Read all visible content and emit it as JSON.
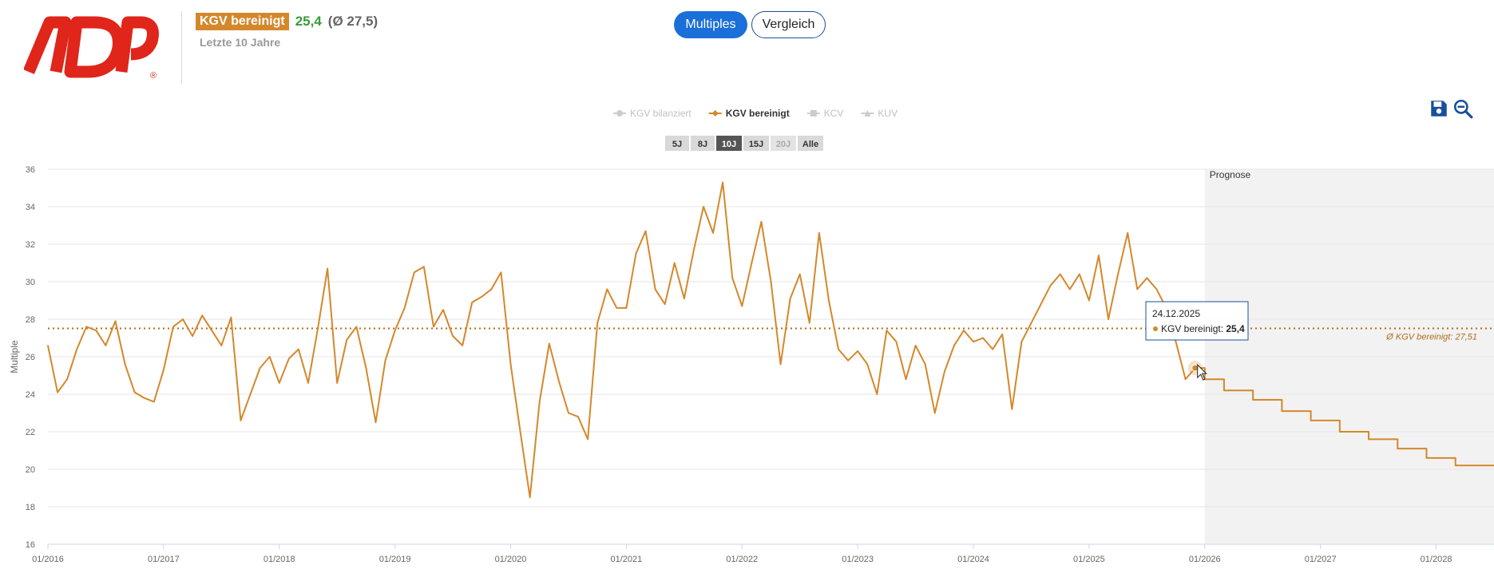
{
  "header": {
    "logo_text": "ADP",
    "kpi_label": "KGV bereinigt",
    "kpi_value": "25,4",
    "kpi_avg": "(Ø 27,5)",
    "period_label": "Letzte 10 Jahre"
  },
  "view_toggle": {
    "active": "Multiples",
    "inactive": "Vergleich"
  },
  "tools": {
    "save_icon": "save-icon",
    "zoom_out_icon": "zoom-out-icon"
  },
  "colors": {
    "series": "#d4882b",
    "accent": "#1a6fd9",
    "positive": "#3a9a3a",
    "forecast_bg": "#f2f2f2"
  },
  "legend": [
    {
      "label": "KGV bilanziert",
      "active": false,
      "marker": "circle"
    },
    {
      "label": "KGV bereinigt",
      "active": true,
      "marker": "diamond"
    },
    {
      "label": "KCV",
      "active": false,
      "marker": "square"
    },
    {
      "label": "KUV",
      "active": false,
      "marker": "triangle"
    }
  ],
  "ranges": [
    {
      "label": "5J",
      "state": "normal"
    },
    {
      "label": "8J",
      "state": "normal"
    },
    {
      "label": "10J",
      "state": "selected"
    },
    {
      "label": "15J",
      "state": "normal"
    },
    {
      "label": "20J",
      "state": "disabled"
    },
    {
      "label": "Alle",
      "state": "normal"
    }
  ],
  "tooltip": {
    "date": "24.12.2025",
    "series": "KGV bereinigt:",
    "value": "25,4"
  },
  "chart_data": {
    "type": "line",
    "title": "",
    "xlabel": "",
    "ylabel": "Multiple",
    "ylim": [
      16,
      36
    ],
    "yticks": [
      16,
      18,
      20,
      22,
      24,
      26,
      28,
      30,
      32,
      34,
      36
    ],
    "xlim": [
      "2016-01",
      "2028-07"
    ],
    "xticks": [
      "01/2016",
      "01/2017",
      "01/2018",
      "01/2019",
      "01/2020",
      "01/2021",
      "01/2022",
      "01/2023",
      "01/2024",
      "01/2025",
      "01/2026",
      "01/2027",
      "01/2028"
    ],
    "grid": "horizontal",
    "legend_position": "top-center",
    "average": {
      "value": 27.51,
      "label": "Ø KGV bereinigt: 27,51"
    },
    "forecast_label": "Prognose",
    "forecast_start": "2026-01",
    "series": [
      {
        "name": "KGV bereinigt",
        "color": "#d4882b",
        "points": [
          [
            "2016-01",
            26.6
          ],
          [
            "2016-02",
            24.1
          ],
          [
            "2016-03",
            24.8
          ],
          [
            "2016-04",
            26.4
          ],
          [
            "2016-05",
            27.6
          ],
          [
            "2016-06",
            27.4
          ],
          [
            "2016-07",
            26.6
          ],
          [
            "2016-08",
            27.9
          ],
          [
            "2016-09",
            25.6
          ],
          [
            "2016-10",
            24.1
          ],
          [
            "2016-11",
            23.8
          ],
          [
            "2016-12",
            23.6
          ],
          [
            "2017-01",
            25.3
          ],
          [
            "2017-02",
            27.6
          ],
          [
            "2017-03",
            28.0
          ],
          [
            "2017-04",
            27.1
          ],
          [
            "2017-05",
            28.2
          ],
          [
            "2017-06",
            27.4
          ],
          [
            "2017-07",
            26.6
          ],
          [
            "2017-08",
            28.1
          ],
          [
            "2017-09",
            22.6
          ],
          [
            "2017-10",
            24.0
          ],
          [
            "2017-11",
            25.4
          ],
          [
            "2017-12",
            26.0
          ],
          [
            "2018-01",
            24.6
          ],
          [
            "2018-02",
            25.9
          ],
          [
            "2018-03",
            26.4
          ],
          [
            "2018-04",
            24.6
          ],
          [
            "2018-05",
            27.5
          ],
          [
            "2018-06",
            30.7
          ],
          [
            "2018-07",
            24.6
          ],
          [
            "2018-08",
            26.9
          ],
          [
            "2018-09",
            27.6
          ],
          [
            "2018-10",
            25.4
          ],
          [
            "2018-11",
            22.5
          ],
          [
            "2018-12",
            25.8
          ],
          [
            "2019-01",
            27.4
          ],
          [
            "2019-02",
            28.6
          ],
          [
            "2019-03",
            30.5
          ],
          [
            "2019-04",
            30.8
          ],
          [
            "2019-05",
            27.6
          ],
          [
            "2019-06",
            28.5
          ],
          [
            "2019-07",
            27.1
          ],
          [
            "2019-08",
            26.6
          ],
          [
            "2019-09",
            28.9
          ],
          [
            "2019-10",
            29.2
          ],
          [
            "2019-11",
            29.6
          ],
          [
            "2019-12",
            30.5
          ],
          [
            "2020-01",
            25.6
          ],
          [
            "2020-02",
            22.0
          ],
          [
            "2020-03",
            18.5
          ],
          [
            "2020-04",
            23.6
          ],
          [
            "2020-05",
            26.7
          ],
          [
            "2020-06",
            24.7
          ],
          [
            "2020-07",
            23.0
          ],
          [
            "2020-08",
            22.8
          ],
          [
            "2020-09",
            21.6
          ],
          [
            "2020-10",
            27.8
          ],
          [
            "2020-11",
            29.6
          ],
          [
            "2020-12",
            28.6
          ],
          [
            "2021-01",
            28.6
          ],
          [
            "2021-02",
            31.5
          ],
          [
            "2021-03",
            32.7
          ],
          [
            "2021-04",
            29.6
          ],
          [
            "2021-05",
            28.8
          ],
          [
            "2021-06",
            31.0
          ],
          [
            "2021-07",
            29.1
          ],
          [
            "2021-08",
            31.7
          ],
          [
            "2021-09",
            34.0
          ],
          [
            "2021-10",
            32.6
          ],
          [
            "2021-11",
            35.3
          ],
          [
            "2021-12",
            30.2
          ],
          [
            "2022-01",
            28.7
          ],
          [
            "2022-02",
            31.0
          ],
          [
            "2022-03",
            33.2
          ],
          [
            "2022-04",
            30.0
          ],
          [
            "2022-05",
            25.6
          ],
          [
            "2022-06",
            29.1
          ],
          [
            "2022-07",
            30.4
          ],
          [
            "2022-08",
            27.8
          ],
          [
            "2022-09",
            32.6
          ],
          [
            "2022-10",
            29.0
          ],
          [
            "2022-11",
            26.4
          ],
          [
            "2022-12",
            25.8
          ],
          [
            "2023-01",
            26.3
          ],
          [
            "2023-02",
            25.6
          ],
          [
            "2023-03",
            24.0
          ],
          [
            "2023-04",
            27.4
          ],
          [
            "2023-05",
            26.8
          ],
          [
            "2023-06",
            24.8
          ],
          [
            "2023-07",
            26.6
          ],
          [
            "2023-08",
            25.6
          ],
          [
            "2023-09",
            23.0
          ],
          [
            "2023-10",
            25.2
          ],
          [
            "2023-11",
            26.6
          ],
          [
            "2023-12",
            27.4
          ],
          [
            "2024-01",
            26.8
          ],
          [
            "2024-02",
            27.0
          ],
          [
            "2024-03",
            26.4
          ],
          [
            "2024-04",
            27.2
          ],
          [
            "2024-05",
            23.2
          ],
          [
            "2024-06",
            26.8
          ],
          [
            "2024-07",
            27.8
          ],
          [
            "2024-08",
            28.8
          ],
          [
            "2024-09",
            29.8
          ],
          [
            "2024-10",
            30.4
          ],
          [
            "2024-11",
            29.6
          ],
          [
            "2024-12",
            30.4
          ],
          [
            "2025-01",
            29.0
          ],
          [
            "2025-02",
            31.4
          ],
          [
            "2025-03",
            28.0
          ],
          [
            "2025-04",
            30.4
          ],
          [
            "2025-05",
            32.6
          ],
          [
            "2025-06",
            29.6
          ],
          [
            "2025-07",
            30.2
          ],
          [
            "2025-08",
            29.6
          ],
          [
            "2025-09",
            28.6
          ],
          [
            "2025-10",
            26.8
          ],
          [
            "2025-11",
            24.8
          ],
          [
            "2025-12",
            25.4
          ]
        ]
      },
      {
        "name": "KGV bereinigt Prognose",
        "color": "#d4882b",
        "step": true,
        "points": [
          [
            "2025-12",
            25.4
          ],
          [
            "2026-01",
            24.8
          ],
          [
            "2026-03",
            24.2
          ],
          [
            "2026-06",
            23.7
          ],
          [
            "2026-09",
            23.1
          ],
          [
            "2026-12",
            22.6
          ],
          [
            "2027-03",
            22.0
          ],
          [
            "2027-06",
            21.6
          ],
          [
            "2027-09",
            21.1
          ],
          [
            "2027-12",
            20.6
          ],
          [
            "2028-03",
            20.2
          ],
          [
            "2028-07",
            20.2
          ]
        ]
      }
    ]
  }
}
